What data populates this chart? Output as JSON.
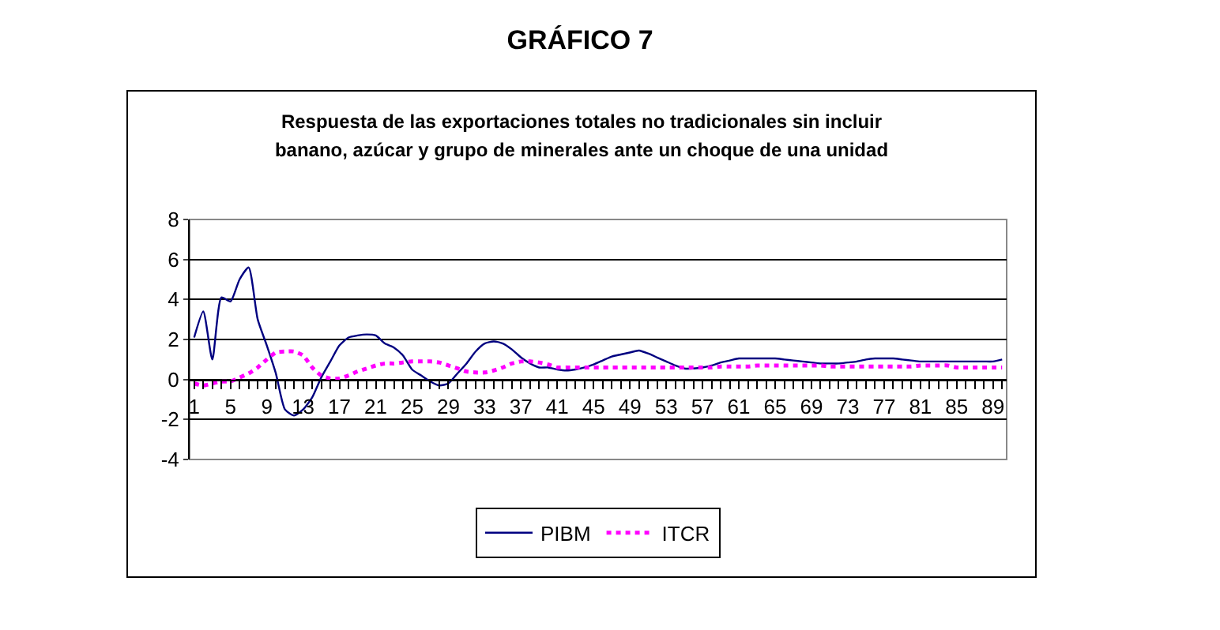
{
  "chart_data": {
    "type": "line",
    "title": "GRÁFICO 7",
    "subtitle": "Respuesta de las exportaciones totales  no tradicionales sin incluir\nbanano, azúcar y grupo de minerales ante un choque de una unidad",
    "categories": [
      "1",
      null,
      null,
      null,
      "5",
      null,
      null,
      null,
      "9",
      null,
      null,
      null,
      "13",
      null,
      null,
      null,
      "17",
      null,
      null,
      null,
      "21",
      null,
      null,
      null,
      "25",
      null,
      null,
      null,
      "29",
      null,
      null,
      null,
      "33",
      null,
      null,
      null,
      "37",
      null,
      null,
      null,
      "41",
      null,
      null,
      null,
      "45",
      null,
      null,
      null,
      "49",
      null,
      null,
      null,
      "53",
      null,
      null,
      null,
      "57",
      null,
      null,
      null,
      "61",
      null,
      null,
      null,
      "65",
      null,
      null,
      null,
      "69",
      null,
      null,
      null,
      "73",
      null,
      null,
      null,
      "77",
      null,
      null,
      null,
      "81",
      null,
      null,
      null,
      "85",
      null,
      null,
      null,
      "89",
      null
    ],
    "series": [
      {
        "name": "PIBM",
        "color": "#000080",
        "line_style": "solid",
        "values": [
          2.1,
          3.4,
          1.0,
          4.1,
          3.9,
          5.0,
          5.6,
          3.0,
          1.7,
          0.3,
          -1.5,
          -1.8,
          -1.5,
          -0.9,
          0.1,
          0.9,
          1.7,
          2.1,
          2.2,
          2.25,
          2.2,
          1.8,
          1.6,
          1.2,
          0.5,
          0.2,
          -0.1,
          -0.3,
          -0.2,
          0.3,
          0.8,
          1.4,
          1.8,
          1.9,
          1.8,
          1.5,
          1.1,
          0.8,
          0.6,
          0.6,
          0.5,
          0.45,
          0.5,
          0.6,
          0.75,
          0.95,
          1.15,
          1.25,
          1.35,
          1.45,
          1.3,
          1.1,
          0.9,
          0.7,
          0.55,
          0.55,
          0.6,
          0.7,
          0.85,
          0.95,
          1.05,
          1.05,
          1.05,
          1.05,
          1.05,
          1.0,
          0.95,
          0.9,
          0.85,
          0.8,
          0.8,
          0.8,
          0.85,
          0.9,
          1.0,
          1.05,
          1.05,
          1.05,
          1.0,
          0.95,
          0.9,
          0.9,
          0.9,
          0.9,
          0.9,
          0.9,
          0.9,
          0.9,
          0.9,
          1.0
        ]
      },
      {
        "name": "ITCR",
        "color": "#ff00ff",
        "line_style": "dotted",
        "values": [
          -0.2,
          -0.3,
          -0.2,
          -0.1,
          -0.1,
          0.1,
          0.3,
          0.6,
          1.0,
          1.35,
          1.4,
          1.4,
          1.2,
          0.6,
          0.2,
          0.05,
          0.05,
          0.2,
          0.4,
          0.55,
          0.7,
          0.8,
          0.8,
          0.85,
          0.9,
          0.9,
          0.9,
          0.85,
          0.7,
          0.55,
          0.4,
          0.35,
          0.35,
          0.45,
          0.6,
          0.8,
          0.9,
          0.9,
          0.85,
          0.75,
          0.6,
          0.6,
          0.6,
          0.6,
          0.6,
          0.6,
          0.6,
          0.6,
          0.6,
          0.6,
          0.6,
          0.6,
          0.6,
          0.6,
          0.6,
          0.6,
          0.6,
          0.6,
          0.65,
          0.65,
          0.65,
          0.65,
          0.7,
          0.7,
          0.7,
          0.7,
          0.7,
          0.7,
          0.7,
          0.7,
          0.65,
          0.65,
          0.65,
          0.65,
          0.65,
          0.65,
          0.65,
          0.65,
          0.65,
          0.65,
          0.7,
          0.7,
          0.7,
          0.7,
          0.6,
          0.6,
          0.6,
          0.6,
          0.6,
          0.6
        ]
      }
    ],
    "ylim": [
      -4,
      8
    ],
    "yticks": [
      -4,
      -2,
      0,
      2,
      4,
      6,
      8
    ],
    "grid": "y",
    "legend": "bottom"
  }
}
